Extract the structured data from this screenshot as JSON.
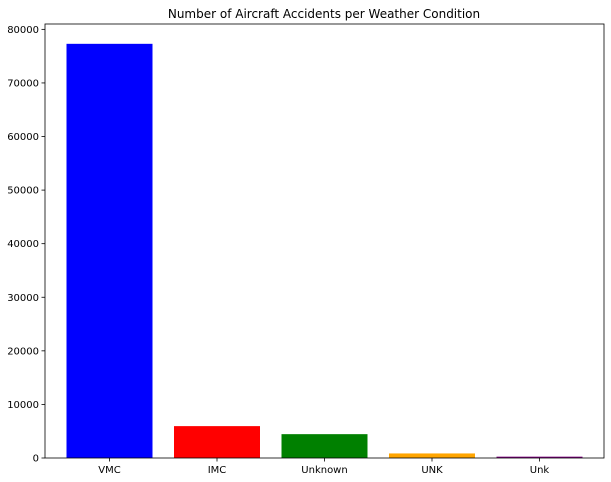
{
  "chart_data": {
    "type": "bar",
    "title": "Number of Aircraft Accidents per Weather Condition",
    "xlabel": "",
    "ylabel": "",
    "categories": [
      "VMC",
      "IMC",
      "Unknown",
      "UNK",
      "Unk"
    ],
    "values": [
      77300,
      5950,
      4450,
      850,
      250
    ],
    "colors": [
      "#0000ff",
      "#ff0000",
      "#008000",
      "#ffa500",
      "#800080"
    ],
    "ylim": [
      0,
      81000
    ],
    "yticks": [
      0,
      10000,
      20000,
      30000,
      40000,
      50000,
      60000,
      70000,
      80000
    ],
    "grid": false,
    "legend": "none"
  }
}
